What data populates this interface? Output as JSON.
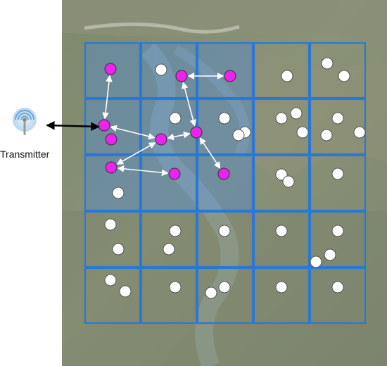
{
  "transmitter": {
    "label": "Transmitter",
    "icon": "antenna-icon"
  },
  "colors": {
    "grid_line": "#2a78d4",
    "active_region_fill": "#4f8bd6",
    "active_node": "#ee22ee",
    "idle_node": "#ffffff",
    "link_arrow": "#ffffff",
    "transmitter_link": "#000000"
  },
  "grid": {
    "columns": 5,
    "rows": 5,
    "active_cells": [
      [
        0,
        0
      ],
      [
        1,
        0
      ],
      [
        2,
        0
      ],
      [
        0,
        1
      ],
      [
        1,
        1
      ],
      [
        2,
        1
      ],
      [
        0,
        2
      ],
      [
        1,
        2
      ],
      [
        2,
        2
      ]
    ]
  },
  "nodes": {
    "active": [
      {
        "id": "a1",
        "cell": "r0c0"
      },
      {
        "id": "a2",
        "cell": "r0c1"
      },
      {
        "id": "a3",
        "cell": "r0c2"
      },
      {
        "id": "a4",
        "cell": "r1c0"
      },
      {
        "id": "a5",
        "cell": "r1c0"
      },
      {
        "id": "a6",
        "cell": "r1c1"
      },
      {
        "id": "a7",
        "cell": "r1c2"
      },
      {
        "id": "a8",
        "cell": "r2c0"
      },
      {
        "id": "a9",
        "cell": "r2c1"
      },
      {
        "id": "a10",
        "cell": "r2c2"
      }
    ],
    "idle_count": 40
  },
  "links": [
    [
      "a4",
      "a1"
    ],
    [
      "a2",
      "a3"
    ],
    [
      "a4",
      "a6"
    ],
    [
      "a6",
      "a7"
    ],
    [
      "a2",
      "a7"
    ],
    [
      "a6",
      "a8"
    ],
    [
      "a8",
      "a9"
    ],
    [
      "a7",
      "a10"
    ]
  ]
}
